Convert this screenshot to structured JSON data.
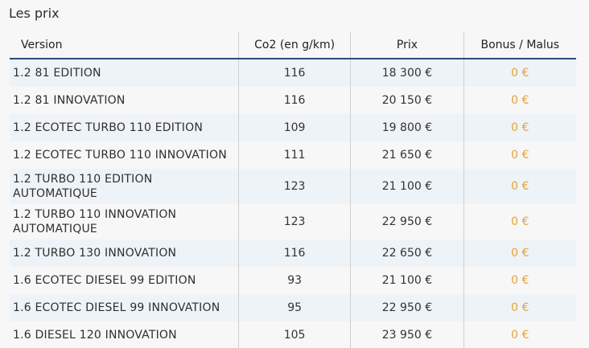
{
  "title": "Les prix",
  "columns": {
    "version": "Version",
    "co2": "Co2 (en g/km)",
    "prix": "Prix",
    "bonus": "Bonus / Malus"
  },
  "rows": [
    {
      "version": "1.2 81 EDITION",
      "co2": "116",
      "prix": "18 300 €",
      "bonus": "0 €"
    },
    {
      "version": "1.2 81 INNOVATION",
      "co2": "116",
      "prix": "20 150 €",
      "bonus": "0 €"
    },
    {
      "version": "1.2 ECOTEC TURBO 110 EDITION",
      "co2": "109",
      "prix": "19 800 €",
      "bonus": "0 €"
    },
    {
      "version": "1.2 ECOTEC TURBO 110 INNOVATION",
      "co2": "111",
      "prix": "21 650 €",
      "bonus": "0 €"
    },
    {
      "version_line1": "1.2 TURBO 110 EDITION",
      "version_line2": "AUTOMATIQUE",
      "co2": "123",
      "prix": "21 100 €",
      "bonus": "0 €"
    },
    {
      "version_line1": "1.2 TURBO 110 INNOVATION",
      "version_line2": "AUTOMATIQUE",
      "co2": "123",
      "prix": "22 950 €",
      "bonus": "0 €"
    },
    {
      "version": "1.2 TURBO 130 INNOVATION",
      "co2": "116",
      "prix": "22 650 €",
      "bonus": "0 €"
    },
    {
      "version": "1.6 ECOTEC DIESEL 99 EDITION",
      "co2": "93",
      "prix": "21 100 €",
      "bonus": "0 €"
    },
    {
      "version": "1.6 ECOTEC DIESEL 99 INNOVATION",
      "co2": "95",
      "prix": "22 950 €",
      "bonus": "0 €"
    },
    {
      "version": "1.6 DIESEL 120 INNOVATION",
      "co2": "105",
      "prix": "23 950 €",
      "bonus": "0 €"
    }
  ],
  "colors": {
    "header_rule": "#2c4a7c",
    "bonus_text": "#e8a23a",
    "stripe": "#eef3f8"
  }
}
